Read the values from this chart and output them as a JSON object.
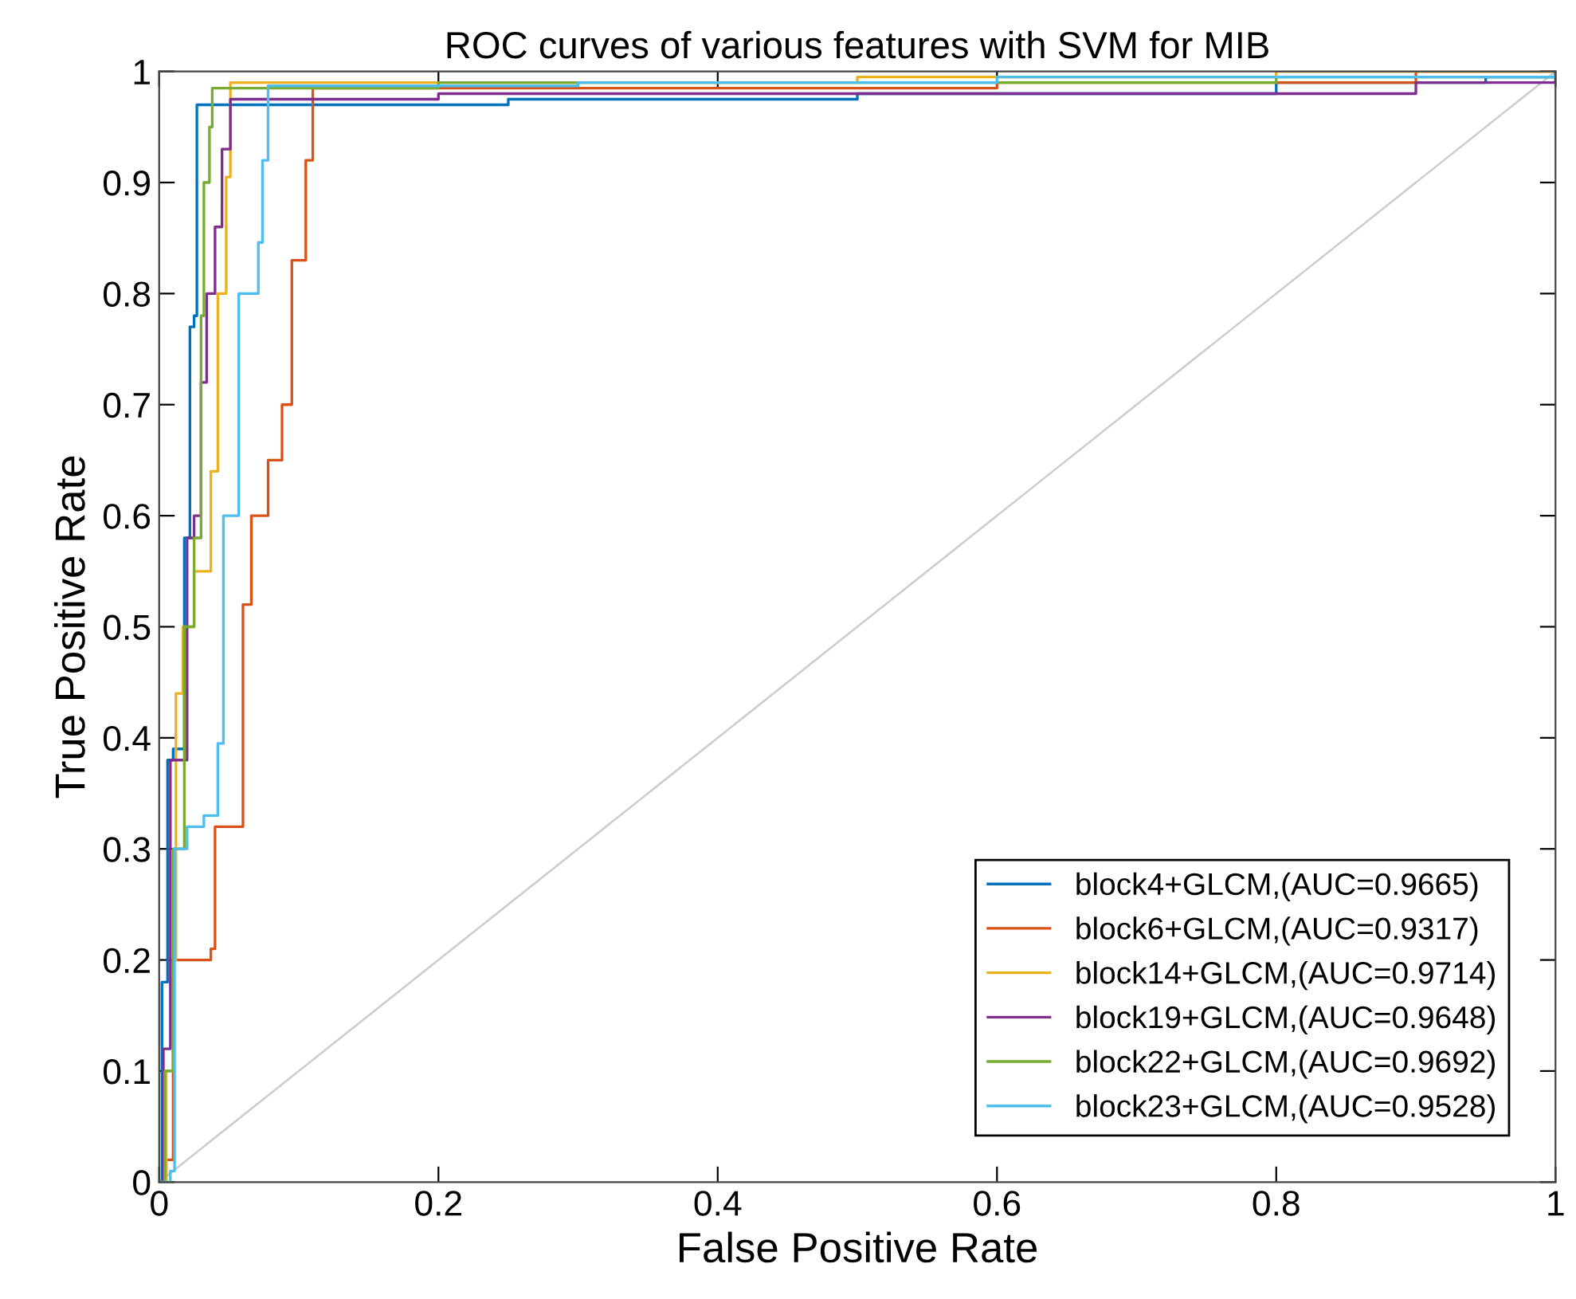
{
  "chart_data": {
    "type": "step",
    "title": "ROC curves of various features with SVM for MIB",
    "xlabel": "False Positive Rate",
    "ylabel": "True Positive Rate",
    "xlim": [
      0,
      1
    ],
    "ylim": [
      0,
      1
    ],
    "xticks": [
      0,
      0.2,
      0.4,
      0.6,
      0.8,
      1
    ],
    "yticks": [
      0,
      0.1,
      0.2,
      0.3,
      0.4,
      0.5,
      0.6,
      0.7,
      0.8,
      0.9,
      1
    ],
    "grid": false,
    "legend": "bottom right",
    "marker": "none",
    "line_style": "solid",
    "series": [
      {
        "name": "block4+GLCM,(AUC=0.9665)",
        "color": "#0072bd",
        "x": [
          0,
          0.002,
          0.006,
          0.01,
          0.018,
          0.022,
          0.025,
          0.027,
          0.1,
          0.25,
          0.5,
          0.7,
          0.8,
          0.95,
          1
        ],
        "values": [
          0,
          0.18,
          0.38,
          0.39,
          0.58,
          0.77,
          0.78,
          0.97,
          0.97,
          0.975,
          0.98,
          0.98,
          0.99,
          0.995,
          1
        ]
      },
      {
        "name": "block6+GLCM,(AUC=0.9317)",
        "color": "#d95319",
        "x": [
          0,
          0.005,
          0.01,
          0.037,
          0.04,
          0.06,
          0.066,
          0.078,
          0.088,
          0.095,
          0.105,
          0.11,
          0.3,
          0.6,
          0.9,
          1
        ],
        "values": [
          0,
          0.02,
          0.2,
          0.21,
          0.32,
          0.52,
          0.6,
          0.65,
          0.7,
          0.83,
          0.92,
          0.985,
          0.985,
          0.99,
          1,
          1
        ]
      },
      {
        "name": "block14+GLCM,(AUC=0.9714)",
        "color": "#edb120",
        "x": [
          0,
          0.005,
          0.01,
          0.012,
          0.017,
          0.025,
          0.037,
          0.042,
          0.048,
          0.051,
          0.2,
          0.5,
          0.8,
          1
        ],
        "values": [
          0,
          0.1,
          0.2,
          0.44,
          0.5,
          0.55,
          0.64,
          0.8,
          0.905,
          0.99,
          0.99,
          0.995,
          1,
          1
        ]
      },
      {
        "name": "block19+GLCM,(AUC=0.9648)",
        "color": "#7e2f8e",
        "x": [
          0,
          0.003,
          0.008,
          0.02,
          0.025,
          0.03,
          0.034,
          0.04,
          0.045,
          0.051,
          0.2,
          0.6,
          0.9,
          1
        ],
        "values": [
          0,
          0.12,
          0.38,
          0.58,
          0.6,
          0.72,
          0.8,
          0.86,
          0.93,
          0.975,
          0.98,
          0.98,
          0.99,
          1
        ]
      },
      {
        "name": "block22+GLCM,(AUC=0.9692)",
        "color": "#77ac30",
        "x": [
          0,
          0.004,
          0.01,
          0.018,
          0.025,
          0.03,
          0.032,
          0.036,
          0.038,
          0.2,
          0.5,
          0.8,
          1
        ],
        "values": [
          0,
          0.1,
          0.3,
          0.5,
          0.58,
          0.78,
          0.9,
          0.95,
          0.985,
          0.99,
          0.99,
          0.995,
          1
        ]
      },
      {
        "name": "block23+GLCM,(AUC=0.9528)",
        "color": "#4dbeee",
        "x": [
          0,
          0.008,
          0.011,
          0.02,
          0.032,
          0.042,
          0.046,
          0.057,
          0.071,
          0.074,
          0.078,
          0.3,
          0.6,
          1
        ],
        "values": [
          0,
          0.01,
          0.3,
          0.32,
          0.33,
          0.395,
          0.6,
          0.8,
          0.846,
          0.92,
          0.987,
          0.99,
          0.995,
          1
        ]
      },
      {
        "type": "line",
        "color": "#cccccc",
        "x": [
          0,
          1
        ],
        "values": [
          0,
          1
        ]
      }
    ]
  }
}
